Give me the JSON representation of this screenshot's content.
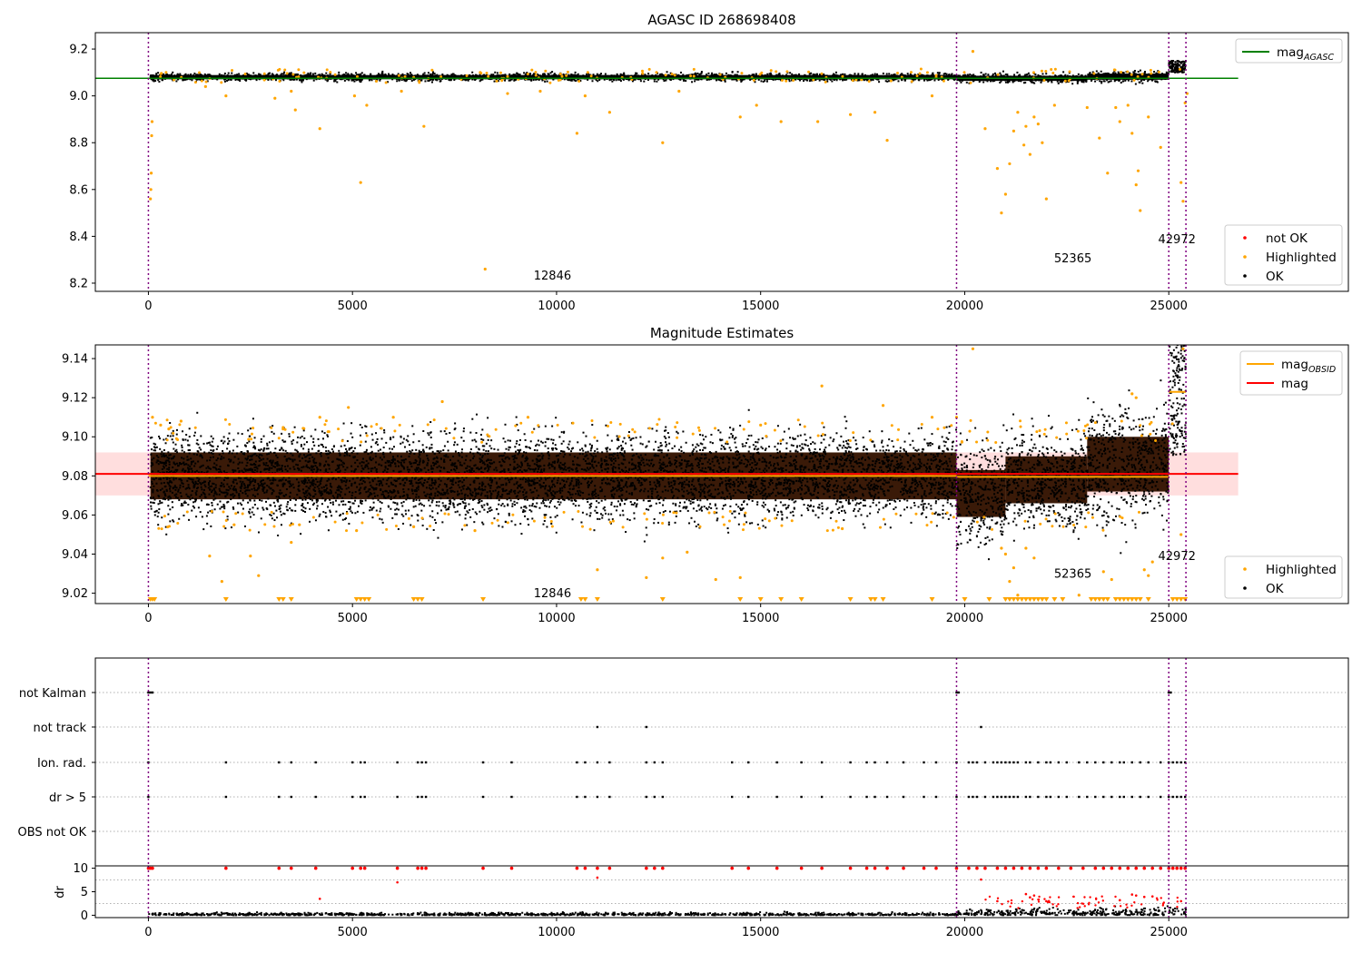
{
  "figure": {
    "panel1_title": "AGASC ID 268698408",
    "panel2_title": "Magnitude Estimates"
  },
  "colors": {
    "ok": "#000000",
    "highlighted": "#ffa500",
    "not_ok": "#ff0000",
    "mag_agasc": "#008000",
    "mag_obsid": "#ffa500",
    "mag": "#ff0000",
    "band": "#ffd6d6",
    "obsid_boundary": "#800080",
    "grid": "#b0b0b0"
  },
  "chart_data": [
    {
      "type": "scatter",
      "title": "AGASC ID 268698408",
      "xlim": [
        -1300,
        29400
      ],
      "ylim": [
        8.165,
        9.27
      ],
      "x_ticks": [
        0,
        5000,
        10000,
        15000,
        20000,
        25000
      ],
      "y_ticks": [
        8.2,
        8.4,
        8.6,
        8.8,
        9.0,
        9.2
      ],
      "y_tick_labels": [
        "8.2",
        "8.4",
        "8.6",
        "8.8",
        "9.0",
        "9.2"
      ],
      "legend_upper": {
        "position": "top-right",
        "entries": [
          {
            "label": "mag",
            "sub": "AGASC",
            "color": "#008000",
            "style": "line"
          }
        ]
      },
      "legend_lower": {
        "position": "bottom-right",
        "entries": [
          {
            "label": "not OK",
            "color": "#ff0000",
            "style": "dot"
          },
          {
            "label": "Highlighted",
            "color": "#ffa500",
            "style": "dot"
          },
          {
            "label": "OK",
            "color": "#000000",
            "style": "dot"
          }
        ]
      },
      "hlines": [
        {
          "name": "mag_AGASC",
          "y": 9.075,
          "x": [
            -1300,
            26700
          ],
          "color": "#008000"
        }
      ],
      "vlines": [
        0,
        19800,
        25000,
        25420
      ],
      "obsid_labels": [
        {
          "text": "12846",
          "x": 9900,
          "y": 8.215
        },
        {
          "text": "52365",
          "x": 22650,
          "y": 8.29
        },
        {
          "text": "42972",
          "x": 25200,
          "y": 8.37
        }
      ],
      "ok_bands": [
        {
          "x0": 50,
          "x1": 19800,
          "center": 9.08,
          "halfwidth": 0.018
        },
        {
          "x0": 19800,
          "x1": 23000,
          "center": 9.075,
          "halfwidth": 0.022
        },
        {
          "x0": 23000,
          "x1": 25000,
          "center": 9.082,
          "halfwidth": 0.026
        }
      ],
      "highlighted_points": [
        [
          50,
          8.56
        ],
        [
          60,
          8.6
        ],
        [
          70,
          8.67
        ],
        [
          80,
          8.83
        ],
        [
          90,
          8.89
        ],
        [
          1400,
          9.04
        ],
        [
          1900,
          9.0
        ],
        [
          3100,
          8.99
        ],
        [
          3500,
          9.02
        ],
        [
          3600,
          8.94
        ],
        [
          4200,
          8.86
        ],
        [
          5050,
          9.0
        ],
        [
          5200,
          8.63
        ],
        [
          5350,
          8.96
        ],
        [
          6200,
          9.02
        ],
        [
          6750,
          8.87
        ],
        [
          8250,
          8.26
        ],
        [
          8800,
          9.01
        ],
        [
          9600,
          9.02
        ],
        [
          10500,
          8.84
        ],
        [
          10700,
          9.0
        ],
        [
          11300,
          8.93
        ],
        [
          12600,
          8.8
        ],
        [
          13000,
          9.02
        ],
        [
          14500,
          8.91
        ],
        [
          14900,
          8.96
        ],
        [
          15500,
          8.89
        ],
        [
          16400,
          8.89
        ],
        [
          17200,
          8.92
        ],
        [
          17800,
          8.93
        ],
        [
          18100,
          8.81
        ],
        [
          19200,
          9.0
        ],
        [
          20200,
          9.19
        ],
        [
          20500,
          8.86
        ],
        [
          20800,
          8.69
        ],
        [
          20900,
          8.5
        ],
        [
          21000,
          8.58
        ],
        [
          21100,
          8.71
        ],
        [
          21200,
          8.85
        ],
        [
          21300,
          8.93
        ],
        [
          21450,
          8.79
        ],
        [
          21500,
          8.87
        ],
        [
          21600,
          8.75
        ],
        [
          21700,
          8.91
        ],
        [
          21800,
          8.88
        ],
        [
          21900,
          8.8
        ],
        [
          22000,
          8.56
        ],
        [
          22200,
          8.96
        ],
        [
          23000,
          8.95
        ],
        [
          23300,
          8.82
        ],
        [
          23500,
          8.67
        ],
        [
          23700,
          8.95
        ],
        [
          23800,
          8.89
        ],
        [
          24000,
          8.96
        ],
        [
          24100,
          8.84
        ],
        [
          24200,
          8.62
        ],
        [
          24250,
          8.68
        ],
        [
          24300,
          8.51
        ],
        [
          24500,
          8.91
        ],
        [
          24800,
          8.78
        ],
        [
          25300,
          8.63
        ],
        [
          25350,
          8.55
        ],
        [
          25400,
          8.97
        ],
        [
          25450,
          9.01
        ]
      ]
    },
    {
      "type": "scatter",
      "title": "Magnitude Estimates",
      "xlim": [
        -1300,
        29400
      ],
      "ylim": [
        9.0147,
        9.147
      ],
      "x_ticks": [
        0,
        5000,
        10000,
        15000,
        20000,
        25000
      ],
      "y_ticks": [
        9.02,
        9.04,
        9.06,
        9.08,
        9.1,
        9.12,
        9.14
      ],
      "y_tick_labels": [
        "9.02",
        "9.04",
        "9.06",
        "9.08",
        "9.10",
        "9.12",
        "9.14"
      ],
      "legend_upper": {
        "position": "top-right",
        "entries": [
          {
            "label": "mag",
            "sub": "OBSID",
            "color": "#ffa500",
            "style": "line"
          },
          {
            "label": "mag",
            "sub": "",
            "color": "#ff0000",
            "style": "line"
          }
        ]
      },
      "legend_lower": {
        "position": "bottom-right",
        "entries": [
          {
            "label": "Highlighted",
            "color": "#ffa500",
            "style": "dot"
          },
          {
            "label": "OK",
            "color": "#000000",
            "style": "dot"
          }
        ]
      },
      "mag": 9.081,
      "mag_band": [
        9.07,
        9.092
      ],
      "mag_x": [
        -1300,
        26700
      ],
      "mag_obsid_segments": [
        {
          "x0": 0,
          "x1": 19800,
          "y": 9.08
        },
        {
          "x0": 19800,
          "x1": 25000,
          "y": 9.0795
        },
        {
          "x0": 25000,
          "x1": 25420,
          "y": 9.123
        }
      ],
      "vlines": [
        0,
        19800,
        25000,
        25420
      ],
      "obsid_labels": [
        {
          "text": "12846",
          "x": 9900,
          "y": 9.018
        },
        {
          "text": "52365",
          "x": 22650,
          "y": 9.028
        },
        {
          "text": "42972",
          "x": 25200,
          "y": 9.037
        }
      ],
      "ok_bands": [
        {
          "x0": 50,
          "x1": 19800,
          "center": 9.08,
          "halfwidth": 0.012,
          "outer": 0.02
        },
        {
          "x0": 19800,
          "x1": 21000,
          "center": 9.071,
          "halfwidth": 0.012,
          "outer": 0.022
        },
        {
          "x0": 21000,
          "x1": 23000,
          "center": 9.078,
          "halfwidth": 0.012,
          "outer": 0.022
        },
        {
          "x0": 23000,
          "x1": 25000,
          "center": 9.086,
          "halfwidth": 0.014,
          "outer": 0.026
        }
      ],
      "highlighted_points": [
        [
          100,
          9.11
        ],
        [
          300,
          9.106
        ],
        [
          500,
          9.104
        ],
        [
          800,
          9.108
        ],
        [
          1500,
          9.039
        ],
        [
          1800,
          9.026
        ],
        [
          2100,
          9.055
        ],
        [
          2500,
          9.039
        ],
        [
          2700,
          9.029
        ],
        [
          3300,
          9.104
        ],
        [
          3500,
          9.046
        ],
        [
          3700,
          9.055
        ],
        [
          4200,
          9.11
        ],
        [
          4900,
          9.115
        ],
        [
          5100,
          9.052
        ],
        [
          6000,
          9.11
        ],
        [
          6500,
          9.054
        ],
        [
          7200,
          9.118
        ],
        [
          8000,
          9.052
        ],
        [
          9300,
          9.11
        ],
        [
          10400,
          9.107
        ],
        [
          11000,
          9.032
        ],
        [
          12200,
          9.028
        ],
        [
          12600,
          9.038
        ],
        [
          13200,
          9.041
        ],
        [
          13900,
          9.027
        ],
        [
          14500,
          9.028
        ],
        [
          15000,
          9.106
        ],
        [
          16500,
          9.126
        ],
        [
          17000,
          9.053
        ],
        [
          18000,
          9.116
        ],
        [
          19200,
          9.11
        ],
        [
          19800,
          9.11
        ],
        [
          20200,
          9.145
        ],
        [
          20900,
          9.043
        ],
        [
          21000,
          9.04
        ],
        [
          21100,
          9.026
        ],
        [
          21200,
          9.033
        ],
        [
          21300,
          9.019
        ],
        [
          21500,
          9.043
        ],
        [
          21700,
          9.038
        ],
        [
          22800,
          9.019
        ],
        [
          23400,
          9.031
        ],
        [
          23600,
          9.027
        ],
        [
          24100,
          9.122
        ],
        [
          24200,
          9.12
        ],
        [
          24400,
          9.032
        ],
        [
          24500,
          9.029
        ],
        [
          24600,
          9.036
        ],
        [
          25300,
          9.05
        ],
        [
          25350,
          9.145
        ]
      ],
      "highlighted_below": [
        50,
        100,
        150,
        1900,
        3200,
        3300,
        3500,
        5100,
        5200,
        5300,
        5400,
        6500,
        6600,
        6700,
        8200,
        10600,
        10700,
        11000,
        12600,
        14500,
        15000,
        15500,
        16000,
        17200,
        17700,
        17800,
        18000,
        19200,
        20000,
        20600,
        21000,
        21100,
        21200,
        21300,
        21400,
        21500,
        21600,
        21700,
        21800,
        21900,
        22000,
        22200,
        22400,
        23100,
        23200,
        23300,
        23400,
        23500,
        23700,
        23800,
        23900,
        24000,
        24100,
        24200,
        24300,
        24500,
        25100,
        25200,
        25300,
        25400
      ]
    },
    {
      "type": "scatter",
      "xlim": [
        -1300,
        29400
      ],
      "x_ticks": [
        0,
        5000,
        10000,
        15000,
        20000,
        25000
      ],
      "flag_labels": [
        "not Kalman",
        "not track",
        "Ion. rad.",
        "dr > 5",
        "OBS not OK"
      ],
      "vlines": [
        0,
        19800,
        25000,
        25420
      ],
      "not_kalman": [
        0,
        50,
        100,
        19800,
        19850,
        25000,
        25050
      ],
      "not_track": [
        11000,
        12200,
        20400
      ],
      "ion_rad": [
        0,
        1900,
        3200,
        3500,
        4100,
        5000,
        5200,
        5300,
        6100,
        6600,
        6700,
        6800,
        8200,
        8900,
        10500,
        10700,
        11000,
        11300,
        12200,
        12400,
        12600,
        14300,
        14700,
        15400,
        16000,
        16500,
        17200,
        17600,
        17800,
        18100,
        18500,
        19000,
        19300,
        19800,
        20100,
        20200,
        20300,
        20500,
        20700,
        20800,
        20900,
        21000,
        21100,
        21200,
        21300,
        21500,
        21600,
        21800,
        22000,
        22100,
        22300,
        22500,
        22800,
        23000,
        23200,
        23400,
        23600,
        23800,
        23900,
        24100,
        24300,
        24500,
        24800,
        25000,
        25100,
        25200,
        25300,
        25400
      ],
      "dr_gt_5": [
        0,
        1900,
        3200,
        3500,
        4100,
        5000,
        5200,
        5300,
        6100,
        6600,
        6700,
        6800,
        8200,
        8900,
        10500,
        10700,
        11000,
        11300,
        12200,
        12400,
        12600,
        14300,
        14700,
        15400,
        16000,
        16500,
        17200,
        17600,
        17800,
        18100,
        18500,
        19000,
        19300,
        19800,
        20100,
        20200,
        20300,
        20500,
        20700,
        20800,
        20900,
        21000,
        21100,
        21200,
        21300,
        21500,
        21600,
        21800,
        22000,
        22100,
        22300,
        22500,
        22800,
        23000,
        23200,
        23400,
        23600,
        23800,
        23900,
        24100,
        24300,
        24500,
        24800,
        25000,
        25100,
        25200,
        25300,
        25400
      ]
    },
    {
      "type": "scatter",
      "ylabel": "dr",
      "xlim": [
        -1300,
        29400
      ],
      "ylim": [
        -0.5,
        10.5
      ],
      "x_ticks": [
        0,
        5000,
        10000,
        15000,
        20000,
        25000
      ],
      "x_tick_labels": [
        "0",
        "5000",
        "10000",
        "15000",
        "20000",
        "25000"
      ],
      "y_ticks": [
        0,
        5,
        10
      ],
      "y_tick_labels": [
        "0",
        "5",
        "10"
      ],
      "vlines": [
        0,
        19800,
        25000,
        25420
      ],
      "capped_points_x": [
        0,
        50,
        100,
        1900,
        3200,
        3500,
        4100,
        5000,
        5200,
        5300,
        6100,
        6600,
        6700,
        6800,
        8200,
        8900,
        10500,
        10700,
        11000,
        11300,
        12200,
        12400,
        12600,
        14300,
        14700,
        15400,
        16000,
        16500,
        17200,
        17600,
        17800,
        18100,
        18500,
        19000,
        19300,
        19800,
        20100,
        20300,
        20500,
        20800,
        21000,
        21200,
        21400,
        21600,
        21800,
        22000,
        22300,
        22600,
        22900,
        23200,
        23400,
        23600,
        23800,
        24000,
        24200,
        24400,
        24600,
        24800,
        25000,
        25100,
        25200,
        25300,
        25400
      ],
      "other_points": [
        [
          6100,
          7.0
        ],
        [
          11000,
          8.0
        ],
        [
          20400,
          7.6
        ],
        [
          4200,
          3.5
        ],
        [
          20800,
          3.0
        ],
        [
          21500,
          4.5
        ],
        [
          21600,
          3.8
        ],
        [
          21700,
          4.2
        ],
        [
          22000,
          3.0
        ],
        [
          23800,
          3.2
        ],
        [
          24100,
          4.4
        ],
        [
          24200,
          4.2
        ],
        [
          24400,
          3.9
        ],
        [
          24600,
          4.0
        ],
        [
          25300,
          3.0
        ]
      ]
    }
  ]
}
